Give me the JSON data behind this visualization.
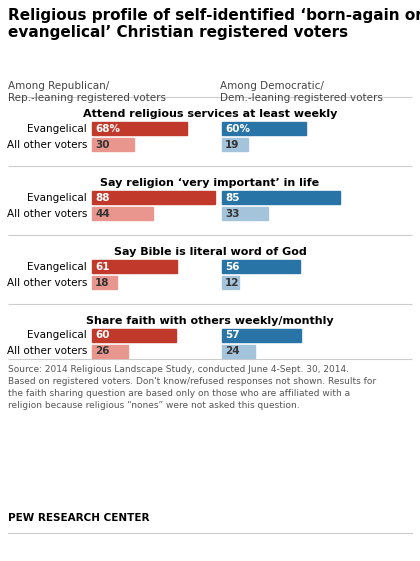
{
  "title": "Religious profile of self-identified ‘born-again or\nevangelical’ Christian registered voters",
  "subtitle_left": "Among Republican/\nRep.-leaning registered voters",
  "subtitle_right": "Among Democratic/\nDem.-leaning registered voters",
  "sections": [
    {
      "title": "Attend religious services at least weekly",
      "rows": [
        {
          "label": "Evangelical",
          "rep_val": 68,
          "dem_val": 60,
          "rep_pct": true,
          "dem_pct": true
        },
        {
          "label": "All other voters",
          "rep_val": 30,
          "dem_val": 19,
          "rep_pct": false,
          "dem_pct": false
        }
      ]
    },
    {
      "title": "Say religion ‘very important’ in life",
      "rows": [
        {
          "label": "Evangelical",
          "rep_val": 88,
          "dem_val": 85,
          "rep_pct": false,
          "dem_pct": false
        },
        {
          "label": "All other voters",
          "rep_val": 44,
          "dem_val": 33,
          "rep_pct": false,
          "dem_pct": false
        }
      ]
    },
    {
      "title": "Say Bible is literal word of God",
      "rows": [
        {
          "label": "Evangelical",
          "rep_val": 61,
          "dem_val": 56,
          "rep_pct": false,
          "dem_pct": false
        },
        {
          "label": "All other voters",
          "rep_val": 18,
          "dem_val": 12,
          "rep_pct": false,
          "dem_pct": false
        }
      ]
    },
    {
      "title": "Share faith with others weekly/monthly",
      "rows": [
        {
          "label": "Evangelical",
          "rep_val": 60,
          "dem_val": 57,
          "rep_pct": false,
          "dem_pct": false
        },
        {
          "label": "All other voters",
          "rep_val": 26,
          "dem_val": 24,
          "rep_pct": false,
          "dem_pct": false
        }
      ]
    }
  ],
  "colors": {
    "rep_evangelical": "#c0392b",
    "rep_other": "#e8968e",
    "dem_evangelical": "#2874a6",
    "dem_other": "#a4c4dc"
  },
  "footnote": "Source: 2014 Religious Landscape Study, conducted June 4-Sept. 30, 2014.\nBased on registered voters. Don't know/refused responses not shown. Results for\nthe faith sharing question are based only on those who are affiliated with a\nreligion because religious “nones” were not asked this question.",
  "source_label": "PEW RESEARCH CENTER",
  "bar_scale": 1.18
}
